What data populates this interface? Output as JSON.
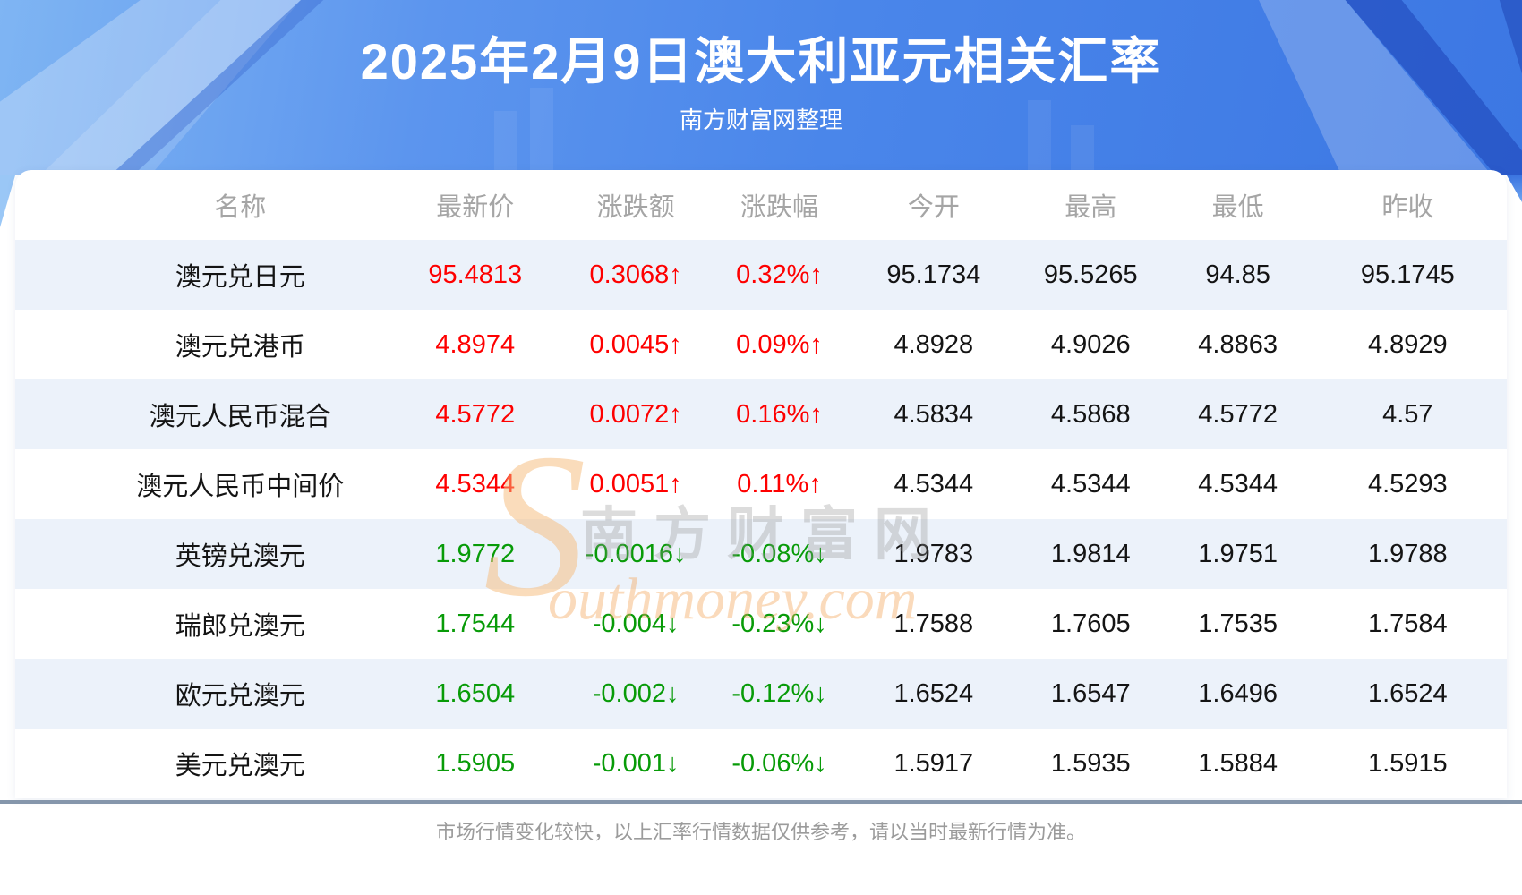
{
  "banner": {
    "title": "2025年2月9日澳大利亚元相关汇率",
    "subtitle": "南方财富网整理"
  },
  "table": {
    "columns": [
      "名称",
      "最新价",
      "涨跌额",
      "涨跌幅",
      "今开",
      "最高",
      "最低",
      "昨收"
    ],
    "rows": [
      {
        "name": "澳元兑日元",
        "last": "95.4813",
        "change": "0.3068↑",
        "pct": "0.32%↑",
        "open": "95.1734",
        "high": "95.5265",
        "low": "94.85",
        "prev": "95.1745",
        "direction": "up"
      },
      {
        "name": "澳元兑港币",
        "last": "4.8974",
        "change": "0.0045↑",
        "pct": "0.09%↑",
        "open": "4.8928",
        "high": "4.9026",
        "low": "4.8863",
        "prev": "4.8929",
        "direction": "up"
      },
      {
        "name": "澳元人民币混合",
        "last": "4.5772",
        "change": "0.0072↑",
        "pct": "0.16%↑",
        "open": "4.5834",
        "high": "4.5868",
        "low": "4.5772",
        "prev": "4.57",
        "direction": "up"
      },
      {
        "name": "澳元人民币中间价",
        "last": "4.5344",
        "change": "0.0051↑",
        "pct": "0.11%↑",
        "open": "4.5344",
        "high": "4.5344",
        "low": "4.5344",
        "prev": "4.5293",
        "direction": "up"
      },
      {
        "name": "英镑兑澳元",
        "last": "1.9772",
        "change": "-0.0016↓",
        "pct": "-0.08%↓",
        "open": "1.9783",
        "high": "1.9814",
        "low": "1.9751",
        "prev": "1.9788",
        "direction": "down"
      },
      {
        "name": "瑞郎兑澳元",
        "last": "1.7544",
        "change": "-0.004↓",
        "pct": "-0.23%↓",
        "open": "1.7588",
        "high": "1.7605",
        "low": "1.7535",
        "prev": "1.7584",
        "direction": "down"
      },
      {
        "name": "欧元兑澳元",
        "last": "1.6504",
        "change": "-0.002↓",
        "pct": "-0.12%↓",
        "open": "1.6524",
        "high": "1.6547",
        "low": "1.6496",
        "prev": "1.6524",
        "direction": "down"
      },
      {
        "name": "美元兑澳元",
        "last": "1.5905",
        "change": "-0.001↓",
        "pct": "-0.06%↓",
        "open": "1.5917",
        "high": "1.5935",
        "low": "1.5884",
        "prev": "1.5915",
        "direction": "down"
      }
    ]
  },
  "watermark": {
    "s_glyph": "S",
    "site_name_cn": "南方财富网",
    "site_name_en": "outhmoney.com"
  },
  "footer": {
    "disclaimer": "市场行情变化较快，以上汇率行情数据仅供参考，请以当时最新行情为准。"
  },
  "colors": {
    "up": "#fe0000",
    "down": "#089b08",
    "brand_blue": "#4a86ea",
    "row_stripe": "#ecf2fa",
    "divider": "#8596ab",
    "watermark_orange": "#f3a75f"
  }
}
